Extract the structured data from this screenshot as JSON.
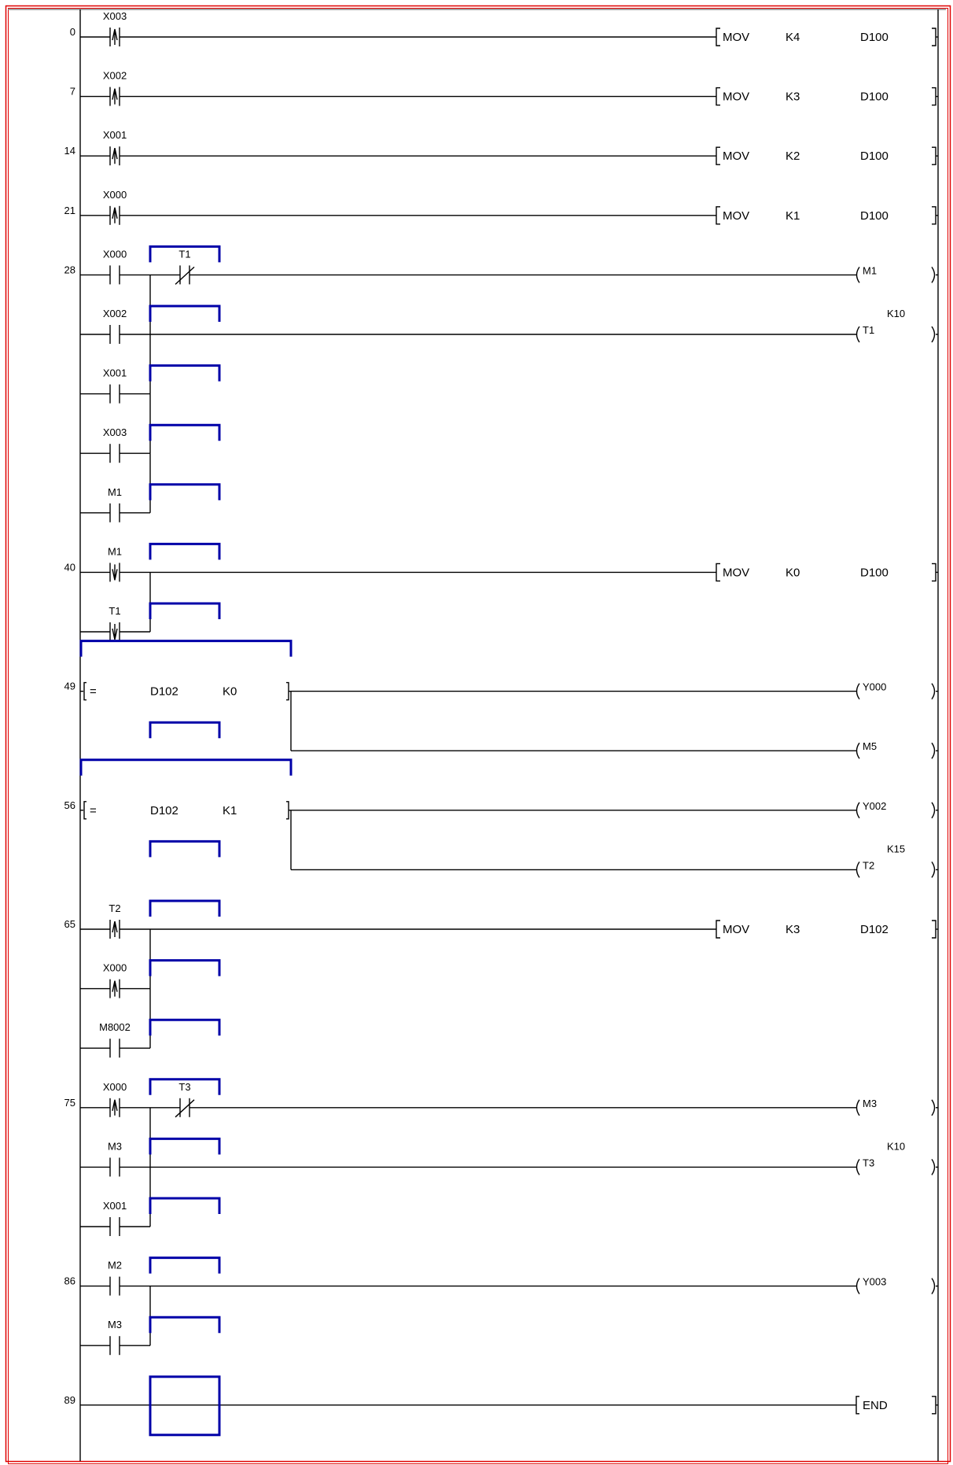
{
  "colors": {
    "frame": "#e00000",
    "cursor": "#0000a8",
    "wire": "#000000"
  },
  "rows": [
    {
      "step": "0",
      "contact": {
        "label": "X003",
        "type": "rise"
      },
      "line": "full",
      "output": {
        "kind": "instr",
        "op": "MOV",
        "src": "K4",
        "dst": "D100"
      }
    },
    {
      "step": "7",
      "contact": {
        "label": "X002",
        "type": "rise"
      },
      "line": "full",
      "output": {
        "kind": "instr",
        "op": "MOV",
        "src": "K3",
        "dst": "D100"
      }
    },
    {
      "step": "14",
      "contact": {
        "label": "X001",
        "type": "rise"
      },
      "line": "full",
      "output": {
        "kind": "instr",
        "op": "MOV",
        "src": "K2",
        "dst": "D100"
      }
    },
    {
      "step": "21",
      "contact": {
        "label": "X000",
        "type": "rise"
      },
      "line": "full",
      "output": {
        "kind": "instr",
        "op": "MOV",
        "src": "K1",
        "dst": "D100"
      }
    },
    {
      "step": "28",
      "contact": {
        "label": "X000",
        "type": "no"
      },
      "contact2": {
        "label": "T1",
        "type": "nc"
      },
      "box": true,
      "line": "full",
      "output": {
        "kind": "coil",
        "label": "M1"
      }
    },
    {
      "contact": {
        "label": "X002",
        "type": "no"
      },
      "box": true,
      "join": "in",
      "line": "full",
      "output": {
        "kind": "coil",
        "label": "T1",
        "preset": "K10"
      }
    },
    {
      "contact": {
        "label": "X001",
        "type": "no"
      },
      "box": true,
      "join": "in",
      "line": "left"
    },
    {
      "contact": {
        "label": "X003",
        "type": "no"
      },
      "box": true,
      "join": "in",
      "line": "left"
    },
    {
      "contact": {
        "label": "M1",
        "type": "no"
      },
      "box": true,
      "join": "in",
      "line": "left"
    },
    {
      "step": "40",
      "contact": {
        "label": "M1",
        "type": "fall"
      },
      "box": true,
      "line": "full",
      "output": {
        "kind": "instr",
        "op": "MOV",
        "src": "K0",
        "dst": "D100"
      }
    },
    {
      "contact": {
        "label": "T1",
        "type": "fall"
      },
      "box": true,
      "join": "in",
      "line": "left"
    },
    {
      "step": "49",
      "compare": {
        "op": "=",
        "a": "D102",
        "b": "K0"
      },
      "line": "compare",
      "output": {
        "kind": "coil",
        "label": "Y000"
      }
    },
    {
      "box": true,
      "join": "out",
      "line": "outbranch",
      "output": {
        "kind": "coil",
        "label": "M5"
      }
    },
    {
      "step": "56",
      "compare": {
        "op": "=",
        "a": "D102",
        "b": "K1"
      },
      "line": "compare",
      "output": {
        "kind": "coil",
        "label": "Y002"
      }
    },
    {
      "box": true,
      "join": "out",
      "line": "outbranch",
      "output": {
        "kind": "coil",
        "label": "T2",
        "preset": "K15"
      }
    },
    {
      "step": "65",
      "contact": {
        "label": "T2",
        "type": "rise"
      },
      "box": true,
      "line": "full",
      "output": {
        "kind": "instr",
        "op": "MOV",
        "src": "K3",
        "dst": "D102"
      }
    },
    {
      "contact": {
        "label": "X000",
        "type": "rise"
      },
      "box": true,
      "join": "in",
      "line": "left"
    },
    {
      "contact": {
        "label": "M8002",
        "type": "no"
      },
      "box": true,
      "join": "in",
      "line": "left"
    },
    {
      "step": "75",
      "contact": {
        "label": "X000",
        "type": "rise"
      },
      "contact2": {
        "label": "T3",
        "type": "nc"
      },
      "box": true,
      "line": "full",
      "output": {
        "kind": "coil",
        "label": "M3"
      }
    },
    {
      "contact": {
        "label": "M3",
        "type": "no"
      },
      "box": true,
      "join": "in",
      "line": "full",
      "output": {
        "kind": "coil",
        "label": "T3",
        "preset": "K10"
      }
    },
    {
      "contact": {
        "label": "X001",
        "type": "no"
      },
      "box": true,
      "join": "in",
      "line": "left"
    },
    {
      "step": "86",
      "contact": {
        "label": "M2",
        "type": "no"
      },
      "box": true,
      "line": "full",
      "output": {
        "kind": "coil",
        "label": "Y003"
      }
    },
    {
      "contact": {
        "label": "M3",
        "type": "no"
      },
      "box": true,
      "join": "in",
      "line": "left"
    },
    {
      "step": "89",
      "cursor": true,
      "line": "full",
      "output": {
        "kind": "end",
        "label": "END"
      }
    }
  ]
}
